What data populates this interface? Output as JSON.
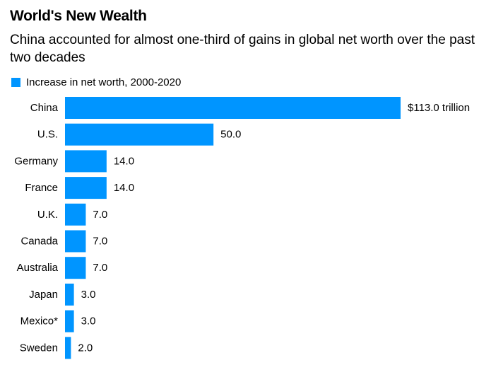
{
  "chart_data": {
    "type": "bar",
    "orientation": "horizontal",
    "title": "World's New Wealth",
    "subtitle": "China accounted for almost one-third of gains in global net worth over the past two decades",
    "legend": [
      "Increase in net worth, 2000-2020"
    ],
    "legend_position": "top-left",
    "categories": [
      "China",
      "U.S.",
      "Germany",
      "France",
      "U.K.",
      "Canada",
      "Australia",
      "Japan",
      "Mexico*",
      "Sweden"
    ],
    "values": [
      113.0,
      50.0,
      14.0,
      14.0,
      7.0,
      7.0,
      7.0,
      3.0,
      3.0,
      2.0
    ],
    "value_labels": [
      "$113.0 trillion",
      "50.0",
      "14.0",
      "14.0",
      "7.0",
      "7.0",
      "7.0",
      "3.0",
      "3.0",
      "2.0"
    ],
    "units": "trillion USD",
    "xlim": [
      0,
      113
    ],
    "xlabel": "",
    "ylabel": "",
    "grid": false,
    "colors": {
      "bar": "#0095ff",
      "text": "#000000",
      "background": "#ffffff"
    }
  }
}
